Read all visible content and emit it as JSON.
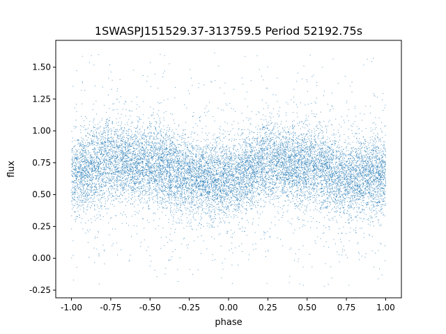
{
  "chart_data": {
    "type": "scatter",
    "title": "1SWASPJ151529.37-313759.5 Period 52192.75s",
    "xlabel": "phase",
    "ylabel": "flux",
    "xlim": [
      -1.1,
      1.1
    ],
    "ylim": [
      -0.31,
      1.71
    ],
    "x_ticks": [
      "-1.00",
      "-0.75",
      "-0.50",
      "-0.25",
      "0.00",
      "0.25",
      "0.50",
      "0.75",
      "1.00"
    ],
    "y_ticks": [
      "-0.25",
      "0.00",
      "0.25",
      "0.50",
      "0.75",
      "1.00",
      "1.25",
      "1.50"
    ],
    "grid": false,
    "marker_color": "#1f77b4",
    "series": [
      {
        "phase_range": [
          -1.0,
          1.0
        ],
        "flux_range": [
          -0.22,
          1.63
        ],
        "mean_flux_by_phase": {
          "x": [
            -1.0,
            -0.75,
            -0.5,
            -0.25,
            0.0,
            0.25,
            0.5,
            0.75,
            1.0
          ],
          "y": [
            0.65,
            0.76,
            0.74,
            0.64,
            0.62,
            0.75,
            0.72,
            0.63,
            0.65
          ]
        },
        "flux_scatter": 0.15
      }
    ]
  }
}
